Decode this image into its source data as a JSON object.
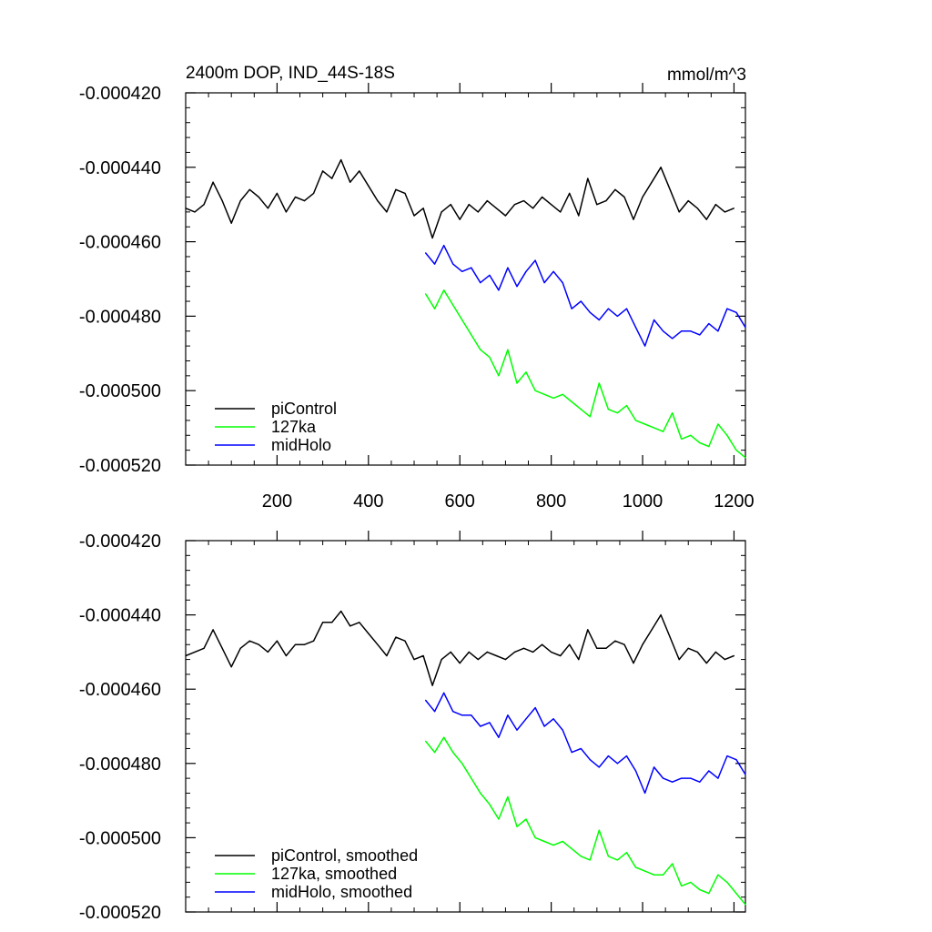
{
  "chart_data": [
    {
      "type": "line",
      "title_left": "2400m DOP, IND_44S-18S",
      "title_right": "mmol/m^3",
      "xlim": [
        0,
        1225
      ],
      "ylim": [
        -0.00052,
        -0.00042
      ],
      "x_ticks": [
        200,
        400,
        600,
        800,
        1000,
        1200
      ],
      "y_ticks": [
        -0.00042,
        -0.00044,
        -0.00046,
        -0.00048,
        -0.0005,
        -0.00052
      ],
      "y_tick_labels": [
        "-0.000420",
        "-0.000440",
        "-0.000460",
        "-0.000480",
        "-0.000500",
        "-0.000520"
      ],
      "x_tick_labels_shown": true,
      "legend_position": "bottom-left",
      "series": [
        {
          "name": "piControl",
          "color": "#000000",
          "x": [
            0,
            20,
            40,
            60,
            80,
            100,
            120,
            140,
            160,
            180,
            200,
            220,
            240,
            260,
            280,
            300,
            320,
            340,
            360,
            380,
            400,
            420,
            440,
            460,
            480,
            500,
            520,
            540,
            560,
            580,
            600,
            620,
            640,
            660,
            680,
            700,
            720,
            740,
            760,
            780,
            800,
            820,
            840,
            860,
            880,
            900,
            920,
            940,
            960,
            980,
            1000,
            1020,
            1040,
            1060,
            1080,
            1100,
            1120,
            1140,
            1160,
            1180,
            1200
          ],
          "y": [
            -0.000451,
            -0.000452,
            -0.00045,
            -0.000444,
            -0.000449,
            -0.000455,
            -0.000449,
            -0.000446,
            -0.000448,
            -0.000451,
            -0.000447,
            -0.000452,
            -0.000448,
            -0.000449,
            -0.000447,
            -0.000441,
            -0.000443,
            -0.000438,
            -0.000444,
            -0.000441,
            -0.000445,
            -0.000449,
            -0.000452,
            -0.000446,
            -0.000447,
            -0.000453,
            -0.000451,
            -0.000459,
            -0.000452,
            -0.00045,
            -0.000454,
            -0.00045,
            -0.000452,
            -0.000449,
            -0.000451,
            -0.000453,
            -0.00045,
            -0.000449,
            -0.000451,
            -0.000448,
            -0.00045,
            -0.000452,
            -0.000447,
            -0.000453,
            -0.000443,
            -0.00045,
            -0.000449,
            -0.000446,
            -0.000448,
            -0.000454,
            -0.000448,
            -0.000444,
            -0.00044,
            -0.000446,
            -0.000452,
            -0.000449,
            -0.000451,
            -0.000454,
            -0.00045,
            -0.000452,
            -0.000451
          ]
        },
        {
          "name": "127ka",
          "color": "#00ff00",
          "x": [
            525,
            545,
            565,
            585,
            605,
            625,
            645,
            665,
            685,
            705,
            725,
            745,
            765,
            785,
            805,
            825,
            845,
            865,
            885,
            905,
            925,
            945,
            965,
            985,
            1005,
            1025,
            1045,
            1065,
            1085,
            1105,
            1125,
            1145,
            1165,
            1185,
            1205,
            1225
          ],
          "y": [
            -0.000474,
            -0.000478,
            -0.000473,
            -0.000477,
            -0.000481,
            -0.000485,
            -0.000489,
            -0.000491,
            -0.000496,
            -0.000489,
            -0.000498,
            -0.000495,
            -0.0005,
            -0.000501,
            -0.000502,
            -0.000501,
            -0.000503,
            -0.000505,
            -0.000507,
            -0.000498,
            -0.000505,
            -0.000506,
            -0.000504,
            -0.000508,
            -0.000509,
            -0.00051,
            -0.000511,
            -0.000506,
            -0.000513,
            -0.000512,
            -0.000514,
            -0.000515,
            -0.000509,
            -0.000512,
            -0.000516,
            -0.000518
          ]
        },
        {
          "name": "midHolo",
          "color": "#0000ff",
          "x": [
            525,
            545,
            565,
            585,
            605,
            625,
            645,
            665,
            685,
            705,
            725,
            745,
            765,
            785,
            805,
            825,
            845,
            865,
            885,
            905,
            925,
            945,
            965,
            985,
            1005,
            1025,
            1045,
            1065,
            1085,
            1105,
            1125,
            1145,
            1165,
            1185,
            1205,
            1225
          ],
          "y": [
            -0.000463,
            -0.000466,
            -0.000461,
            -0.000466,
            -0.000468,
            -0.000467,
            -0.000471,
            -0.000469,
            -0.000473,
            -0.000467,
            -0.000472,
            -0.000468,
            -0.000465,
            -0.000471,
            -0.000468,
            -0.000471,
            -0.000478,
            -0.000476,
            -0.000479,
            -0.000481,
            -0.000478,
            -0.00048,
            -0.000478,
            -0.000483,
            -0.000488,
            -0.000481,
            -0.000484,
            -0.000486,
            -0.000484,
            -0.000484,
            -0.000485,
            -0.000482,
            -0.000484,
            -0.000478,
            -0.000479,
            -0.000483
          ]
        }
      ]
    },
    {
      "type": "line",
      "xlim": [
        0,
        1225
      ],
      "ylim": [
        -0.00052,
        -0.00042
      ],
      "x_ticks": [
        200,
        400,
        600,
        800,
        1000,
        1200
      ],
      "y_ticks": [
        -0.00042,
        -0.00044,
        -0.00046,
        -0.00048,
        -0.0005,
        -0.00052
      ],
      "y_tick_labels": [
        "-0.000420",
        "-0.000440",
        "-0.000460",
        "-0.000480",
        "-0.000500",
        "-0.000520"
      ],
      "x_tick_labels_shown": false,
      "legend_position": "bottom-left",
      "series": [
        {
          "name": "piControl, smoothed",
          "color": "#000000",
          "x": [
            0,
            20,
            40,
            60,
            80,
            100,
            120,
            140,
            160,
            180,
            200,
            220,
            240,
            260,
            280,
            300,
            320,
            340,
            360,
            380,
            400,
            420,
            440,
            460,
            480,
            500,
            520,
            540,
            560,
            580,
            600,
            620,
            640,
            660,
            680,
            700,
            720,
            740,
            760,
            780,
            800,
            820,
            840,
            860,
            880,
            900,
            920,
            940,
            960,
            980,
            1000,
            1020,
            1040,
            1060,
            1080,
            1100,
            1120,
            1140,
            1160,
            1180,
            1200
          ],
          "y": [
            -0.000451,
            -0.00045,
            -0.000449,
            -0.000444,
            -0.000449,
            -0.000454,
            -0.000449,
            -0.000447,
            -0.000448,
            -0.00045,
            -0.000447,
            -0.000451,
            -0.000448,
            -0.000448,
            -0.000447,
            -0.000442,
            -0.000442,
            -0.000439,
            -0.000443,
            -0.000442,
            -0.000445,
            -0.000448,
            -0.000451,
            -0.000446,
            -0.000447,
            -0.000452,
            -0.000451,
            -0.000459,
            -0.000452,
            -0.00045,
            -0.000453,
            -0.00045,
            -0.000452,
            -0.00045,
            -0.000451,
            -0.000452,
            -0.00045,
            -0.000449,
            -0.00045,
            -0.000448,
            -0.00045,
            -0.000451,
            -0.000448,
            -0.000452,
            -0.000444,
            -0.000449,
            -0.000449,
            -0.000447,
            -0.000448,
            -0.000453,
            -0.000448,
            -0.000444,
            -0.00044,
            -0.000446,
            -0.000452,
            -0.000449,
            -0.00045,
            -0.000453,
            -0.00045,
            -0.000452,
            -0.000451
          ]
        },
        {
          "name": "127ka, smoothed",
          "color": "#00ff00",
          "x": [
            525,
            545,
            565,
            585,
            605,
            625,
            645,
            665,
            685,
            705,
            725,
            745,
            765,
            785,
            805,
            825,
            845,
            865,
            885,
            905,
            925,
            945,
            965,
            985,
            1005,
            1025,
            1045,
            1065,
            1085,
            1105,
            1125,
            1145,
            1165,
            1185,
            1205,
            1225
          ],
          "y": [
            -0.000474,
            -0.000477,
            -0.000473,
            -0.000477,
            -0.00048,
            -0.000484,
            -0.000488,
            -0.000491,
            -0.000495,
            -0.000489,
            -0.000497,
            -0.000495,
            -0.0005,
            -0.000501,
            -0.000502,
            -0.000501,
            -0.000503,
            -0.000505,
            -0.000506,
            -0.000498,
            -0.000505,
            -0.000506,
            -0.000504,
            -0.000508,
            -0.000509,
            -0.00051,
            -0.00051,
            -0.000507,
            -0.000513,
            -0.000512,
            -0.000514,
            -0.000515,
            -0.00051,
            -0.000512,
            -0.000515,
            -0.000518
          ]
        },
        {
          "name": "midHolo, smoothed",
          "color": "#0000ff",
          "x": [
            525,
            545,
            565,
            585,
            605,
            625,
            645,
            665,
            685,
            705,
            725,
            745,
            765,
            785,
            805,
            825,
            845,
            865,
            885,
            905,
            925,
            945,
            965,
            985,
            1005,
            1025,
            1045,
            1065,
            1085,
            1105,
            1125,
            1145,
            1165,
            1185,
            1205,
            1225
          ],
          "y": [
            -0.000463,
            -0.000466,
            -0.000461,
            -0.000466,
            -0.000467,
            -0.000467,
            -0.00047,
            -0.000469,
            -0.000473,
            -0.000467,
            -0.000471,
            -0.000468,
            -0.000465,
            -0.00047,
            -0.000468,
            -0.000471,
            -0.000477,
            -0.000476,
            -0.000479,
            -0.000481,
            -0.000478,
            -0.00048,
            -0.000478,
            -0.000482,
            -0.000488,
            -0.000481,
            -0.000484,
            -0.000485,
            -0.000484,
            -0.000484,
            -0.000485,
            -0.000482,
            -0.000484,
            -0.000478,
            -0.000479,
            -0.000483
          ]
        }
      ]
    }
  ]
}
